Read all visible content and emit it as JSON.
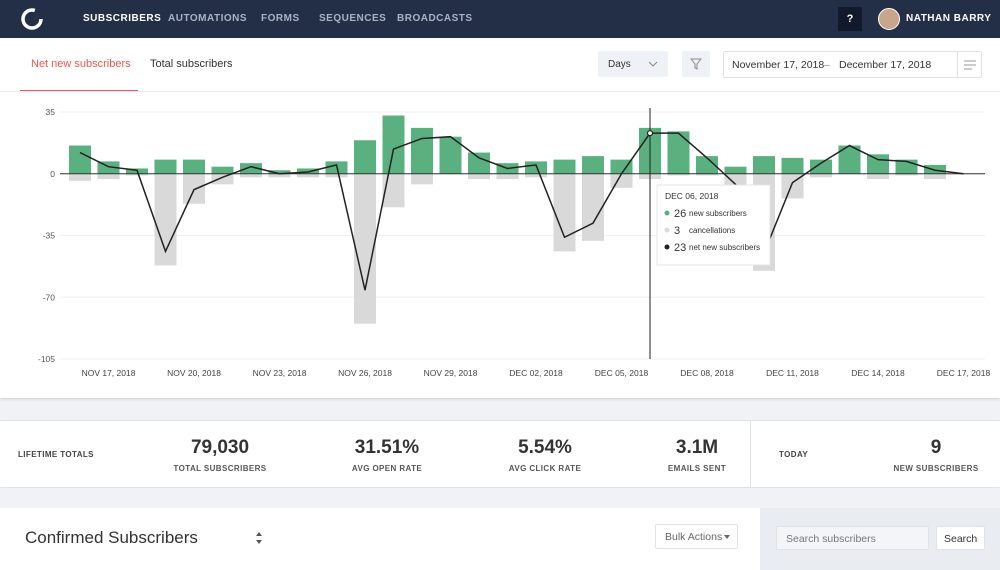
{
  "nav": {
    "items": [
      "SUBSCRIBERS",
      "AUTOMATIONS",
      "FORMS",
      "SEQUENCES",
      "BROADCASTS"
    ],
    "help": "?",
    "user": "NATHAN BARRY"
  },
  "toolbar": {
    "tabs": [
      "Net new subscribers",
      "Total subscribers"
    ],
    "interval": "Days",
    "date_start": "November 17, 2018",
    "date_separator": "–",
    "date_end": "December 17, 2018"
  },
  "chart_data": {
    "type": "bar",
    "categories": [
      null,
      "NOV 17, 2018",
      null,
      null,
      "NOV 20, 2018",
      null,
      null,
      "NOV 23, 2018",
      null,
      null,
      "NOV 26, 2018",
      null,
      null,
      "NOV 29, 2018",
      null,
      null,
      "DEC 02, 2018",
      null,
      null,
      "DEC 05, 2018",
      null,
      null,
      "DEC 08, 2018",
      null,
      null,
      "DEC 11, 2018",
      null,
      null,
      "DEC 14, 2018",
      null,
      null,
      "DEC 17, 2018"
    ],
    "series": [
      {
        "name": "new subscribers",
        "color": "#5bb07f",
        "values": [
          16,
          7,
          3,
          8,
          8,
          4,
          6,
          2,
          3,
          7,
          19,
          33,
          26,
          21,
          12,
          6,
          7,
          8,
          10,
          8,
          26,
          24,
          10,
          4,
          10,
          9,
          8,
          16,
          11,
          8,
          5,
          0
        ]
      },
      {
        "name": "cancellations",
        "color": "#d9d9d9",
        "values": [
          -4,
          -3,
          -1,
          -52,
          -17,
          -6,
          -2,
          -2,
          -2,
          -2,
          -85,
          -19,
          -6,
          0,
          -3,
          -3,
          -2,
          -44,
          -38,
          -8,
          -3,
          -1,
          -1,
          -10,
          -55,
          -14,
          -2,
          0,
          -3,
          -1,
          -3,
          0
        ]
      },
      {
        "name": "net new subscribers",
        "type": "line",
        "color": "#222222",
        "values": [
          12,
          4,
          2,
          -44,
          -9,
          -2,
          4,
          0,
          1,
          5,
          -66,
          14,
          20,
          21,
          9,
          3,
          5,
          -36,
          -28,
          0,
          23,
          23,
          9,
          -6,
          -45,
          -5,
          6,
          16,
          8,
          7,
          2,
          0
        ]
      }
    ],
    "ylim": [
      -105,
      35
    ],
    "yticks": [
      35,
      0,
      -35,
      -70,
      -105
    ],
    "grid": true,
    "tooltip": {
      "title": "DEC 06, 2018",
      "values": [
        26,
        3,
        23
      ]
    }
  },
  "totals": {
    "lifetime_label": "LIFETIME TOTALS",
    "stats": [
      {
        "value": "79,030",
        "label": "TOTAL SUBSCRIBERS"
      },
      {
        "value": "31.51%",
        "label": "AVG OPEN RATE"
      },
      {
        "value": "5.54%",
        "label": "AVG CLICK RATE"
      },
      {
        "value": "3.1M",
        "label": "EMAILS SENT"
      }
    ],
    "today_label": "TODAY",
    "today": {
      "value": "9",
      "label": "NEW SUBSCRIBERS"
    }
  },
  "list": {
    "title": "Confirmed Subscribers",
    "bulk_actions": "Bulk Actions",
    "search_placeholder": "Search subscribers",
    "search_button": "Search"
  }
}
